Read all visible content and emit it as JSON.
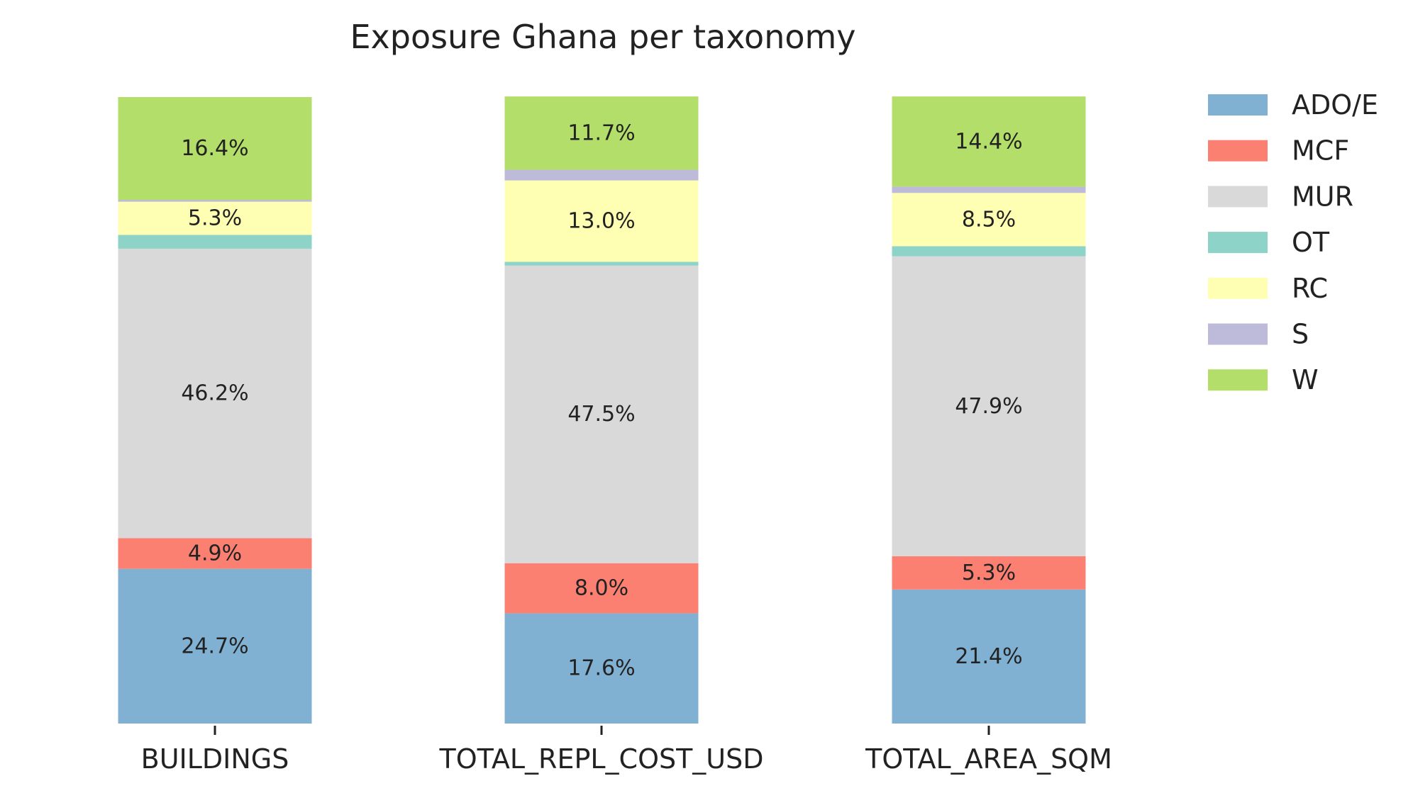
{
  "chart_data": {
    "type": "bar",
    "stacked": true,
    "normalized_percent": true,
    "title": "Exposure Ghana per taxonomy",
    "categories": [
      "BUILDINGS",
      "TOTAL_REPL_COST_USD",
      "TOTAL_AREA_SQM"
    ],
    "series": [
      {
        "name": "ADO/E",
        "color": "#80b1d3",
        "values": [
          24.7,
          17.6,
          21.4
        ]
      },
      {
        "name": "MCF",
        "color": "#fb8072",
        "values": [
          4.9,
          8.0,
          5.3
        ]
      },
      {
        "name": "MUR",
        "color": "#d9d9d9",
        "values": [
          46.2,
          47.5,
          47.9
        ]
      },
      {
        "name": "OT",
        "color": "#8dd3c7",
        "values": [
          2.2,
          0.6,
          1.6
        ]
      },
      {
        "name": "RC",
        "color": "#ffffb3",
        "values": [
          5.3,
          13.0,
          8.5
        ]
      },
      {
        "name": "S",
        "color": "#bebada",
        "values": [
          0.3,
          1.7,
          1.0
        ]
      },
      {
        "name": "W",
        "color": "#b3de69",
        "values": [
          16.4,
          11.7,
          14.4
        ]
      }
    ],
    "data_labels": [
      [
        "24.7%",
        "17.6%",
        "21.4%"
      ],
      [
        "4.9%",
        "8.0%",
        "5.3%"
      ],
      [
        "46.2%",
        "47.5%",
        "47.9%"
      ],
      [
        "",
        "",
        ""
      ],
      [
        "5.3%",
        "13.0%",
        "8.5%"
      ],
      [
        "",
        "",
        ""
      ],
      [
        "16.4%",
        "11.7%",
        "14.4%"
      ]
    ],
    "ylim": [
      0,
      100
    ],
    "grid": false,
    "legend_position": "right"
  }
}
